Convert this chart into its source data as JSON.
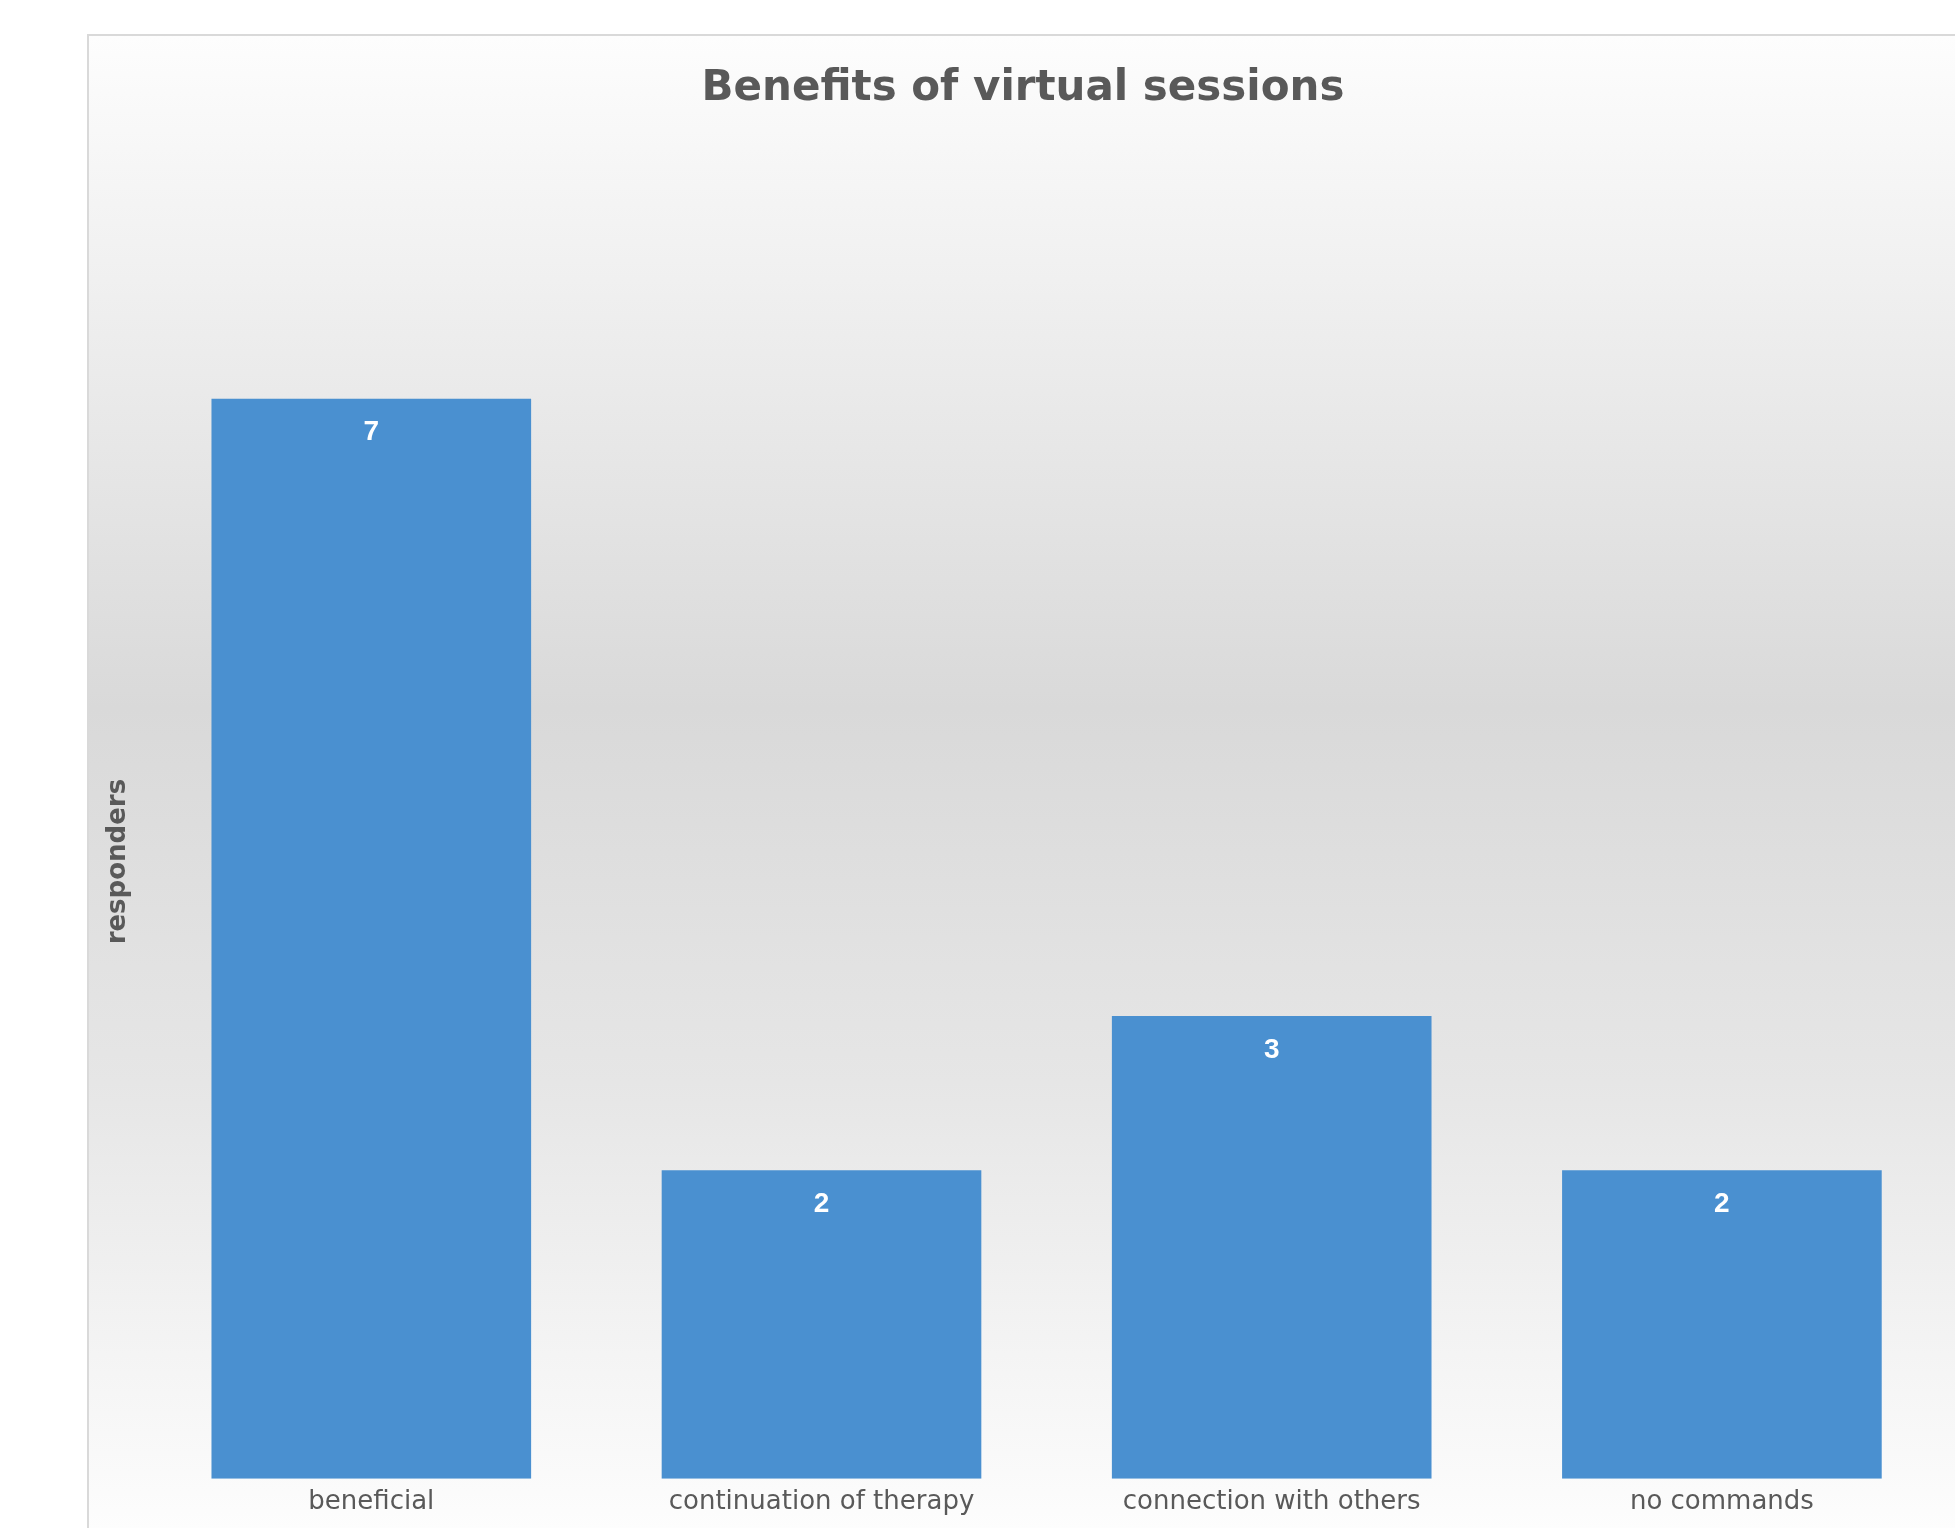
{
  "chart_data": {
    "type": "bar",
    "title": "Benefits of virtual sessions",
    "ylabel": "responders",
    "categories": [
      "beneficial",
      "continuation of therapy",
      "connection with others",
      "no commands"
    ],
    "values": [
      7,
      2,
      3,
      2
    ],
    "color": "#4a90d0",
    "data_labels": true,
    "grid": false,
    "legend": false,
    "tick_labels": "x"
  }
}
